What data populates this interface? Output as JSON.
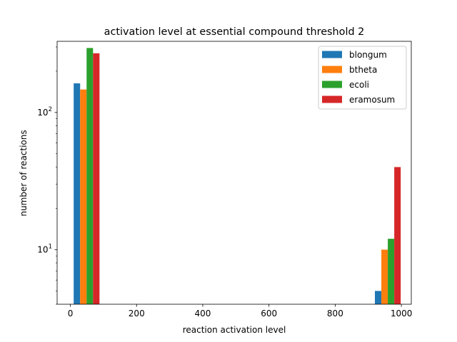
{
  "chart_data": {
    "type": "bar",
    "title": "activation level at essential compound threshold 2",
    "xlabel": "reaction activation level",
    "ylabel": "number of reactions",
    "xlim": [
      -40,
      1030
    ],
    "ylim": [
      4,
      330
    ],
    "yscale": "log",
    "xticks": [
      0,
      200,
      400,
      600,
      800,
      1000
    ],
    "yticks": [
      {
        "value": 10,
        "label_base": "10",
        "label_exp": "1"
      },
      {
        "value": 100,
        "label_base": "10",
        "label_exp": "2"
      }
    ],
    "grid": false,
    "legend_position": "upper right",
    "bins": [
      {
        "x": 10,
        "width": 19.5
      },
      {
        "x": 920,
        "width": 19.5
      }
    ],
    "series": [
      {
        "name": "blongum",
        "color": "#1f77b4",
        "values": [
          163,
          5
        ]
      },
      {
        "name": "btheta",
        "color": "#ff7f0e",
        "values": [
          147,
          10
        ]
      },
      {
        "name": "ecoli",
        "color": "#2ca02c",
        "values": [
          295,
          12
        ]
      },
      {
        "name": "eramosum",
        "color": "#d62728",
        "values": [
          270,
          40
        ]
      }
    ]
  }
}
